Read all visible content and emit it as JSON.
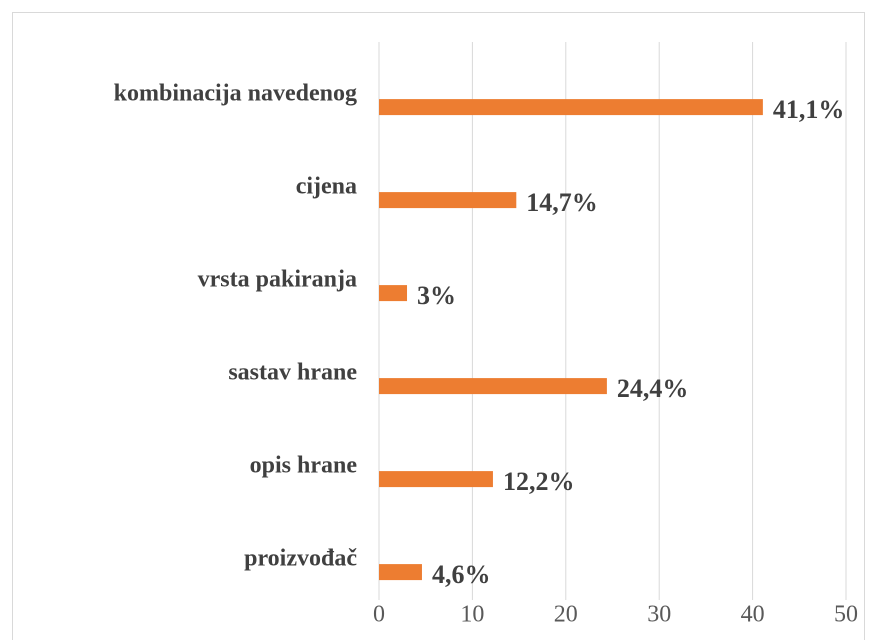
{
  "chart_data": {
    "type": "bar",
    "orientation": "horizontal",
    "categories": [
      "kombinacija navedenog",
      "cijena",
      "vrsta pakiranja",
      "sastav hrane",
      "opis hrane",
      "proizvođač"
    ],
    "values": [
      41.1,
      14.7,
      3,
      24.4,
      12.2,
      4.6
    ],
    "value_labels": [
      "41,1%",
      "14,7%",
      "3%",
      "24,4%",
      "12,2%",
      "4,6%"
    ],
    "color": "#ed7d31",
    "xlim": [
      0,
      50
    ],
    "xticks": [
      0,
      10,
      20,
      30,
      40,
      50
    ],
    "grid": true
  }
}
